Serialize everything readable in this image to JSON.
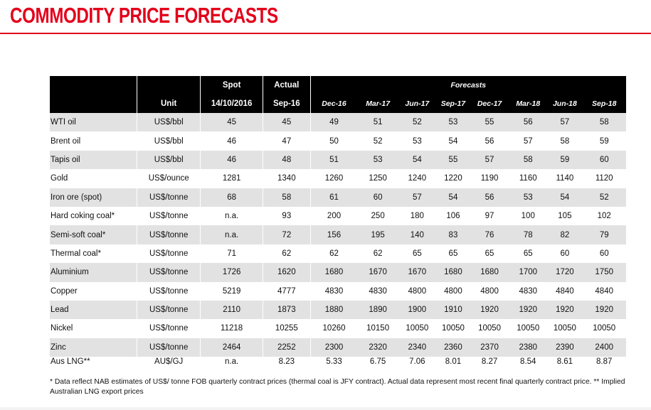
{
  "title": "COMMODITY PRICE FORECASTS",
  "header": {
    "spot": "Spot",
    "actual": "Actual",
    "forecasts": "Forecasts",
    "unit": "Unit",
    "spot_date": "14/10/2016",
    "actual_period": "Sep-16",
    "forecast_periods": [
      "Dec-16",
      "Mar-17",
      "Jun-17",
      "Sep-17",
      "Dec-17",
      "Mar-18",
      "Jun-18",
      "Sep-18"
    ]
  },
  "rows": [
    {
      "name": "WTI oil",
      "unit": "US$/bbl",
      "spot": "45",
      "actual": "45",
      "f": [
        "49",
        "51",
        "52",
        "53",
        "55",
        "56",
        "57",
        "58"
      ]
    },
    {
      "name": "Brent oil",
      "unit": "US$/bbl",
      "spot": "46",
      "actual": "47",
      "f": [
        "50",
        "52",
        "53",
        "54",
        "56",
        "57",
        "58",
        "59"
      ]
    },
    {
      "name": "Tapis oil",
      "unit": "US$/bbl",
      "spot": "46",
      "actual": "48",
      "f": [
        "51",
        "53",
        "54",
        "55",
        "57",
        "58",
        "59",
        "60"
      ]
    },
    {
      "name": "Gold",
      "unit": "US$/ounce",
      "spot": "1281",
      "actual": "1340",
      "f": [
        "1260",
        "1250",
        "1240",
        "1220",
        "1190",
        "1160",
        "1140",
        "1120"
      ]
    },
    {
      "name": "Iron ore (spot)",
      "unit": "US$/tonne",
      "spot": "68",
      "actual": "58",
      "f": [
        "61",
        "60",
        "57",
        "54",
        "56",
        "53",
        "54",
        "52"
      ]
    },
    {
      "name": "Hard coking coal*",
      "unit": "US$/tonne",
      "spot": "n.a.",
      "actual": "93",
      "f": [
        "200",
        "250",
        "180",
        "106",
        "97",
        "100",
        "105",
        "102"
      ]
    },
    {
      "name": "Semi-soft coal*",
      "unit": "US$/tonne",
      "spot": "n.a.",
      "actual": "72",
      "f": [
        "156",
        "195",
        "140",
        "83",
        "76",
        "78",
        "82",
        "79"
      ]
    },
    {
      "name": "Thermal coal*",
      "unit": "US$/tonne",
      "spot": "71",
      "actual": "62",
      "f": [
        "62",
        "62",
        "65",
        "65",
        "65",
        "65",
        "60",
        "60"
      ]
    },
    {
      "name": "Aluminium",
      "unit": "US$/tonne",
      "spot": "1726",
      "actual": "1620",
      "f": [
        "1680",
        "1670",
        "1670",
        "1680",
        "1680",
        "1700",
        "1720",
        "1750"
      ]
    },
    {
      "name": "Copper",
      "unit": "US$/tonne",
      "spot": "5219",
      "actual": "4777",
      "f": [
        "4830",
        "4830",
        "4800",
        "4800",
        "4800",
        "4830",
        "4840",
        "4840"
      ]
    },
    {
      "name": "Lead",
      "unit": "US$/tonne",
      "spot": "2110",
      "actual": "1873",
      "f": [
        "1880",
        "1890",
        "1900",
        "1910",
        "1920",
        "1920",
        "1920",
        "1920"
      ]
    },
    {
      "name": "Nickel",
      "unit": "US$/tonne",
      "spot": "11218",
      "actual": "10255",
      "f": [
        "10260",
        "10150",
        "10050",
        "10050",
        "10050",
        "10050",
        "10050",
        "10050"
      ]
    },
    {
      "name": "Zinc",
      "unit": "US$/tonne",
      "spot": "2464",
      "actual": "2252",
      "f": [
        "2300",
        "2320",
        "2340",
        "2360",
        "2370",
        "2380",
        "2390",
        "2400"
      ]
    },
    {
      "name": "Aus LNG**",
      "unit": "AU$/GJ",
      "spot": "n.a.",
      "actual": "8.23",
      "f": [
        "5.33",
        "6.75",
        "7.06",
        "8.01",
        "8.27",
        "8.54",
        "8.61",
        "8.87"
      ]
    }
  ],
  "footnote": "* Data reflect NAB estimates of US$/ tonne FOB quarterly contract prices (thermal coal is JFY contract). Actual data represent most recent final quarterly contract price. ** Implied Australian LNG export prices",
  "colors": {
    "accent": "#e3001b",
    "header_bg": "#000000",
    "stripe": "#e2e2e2"
  }
}
